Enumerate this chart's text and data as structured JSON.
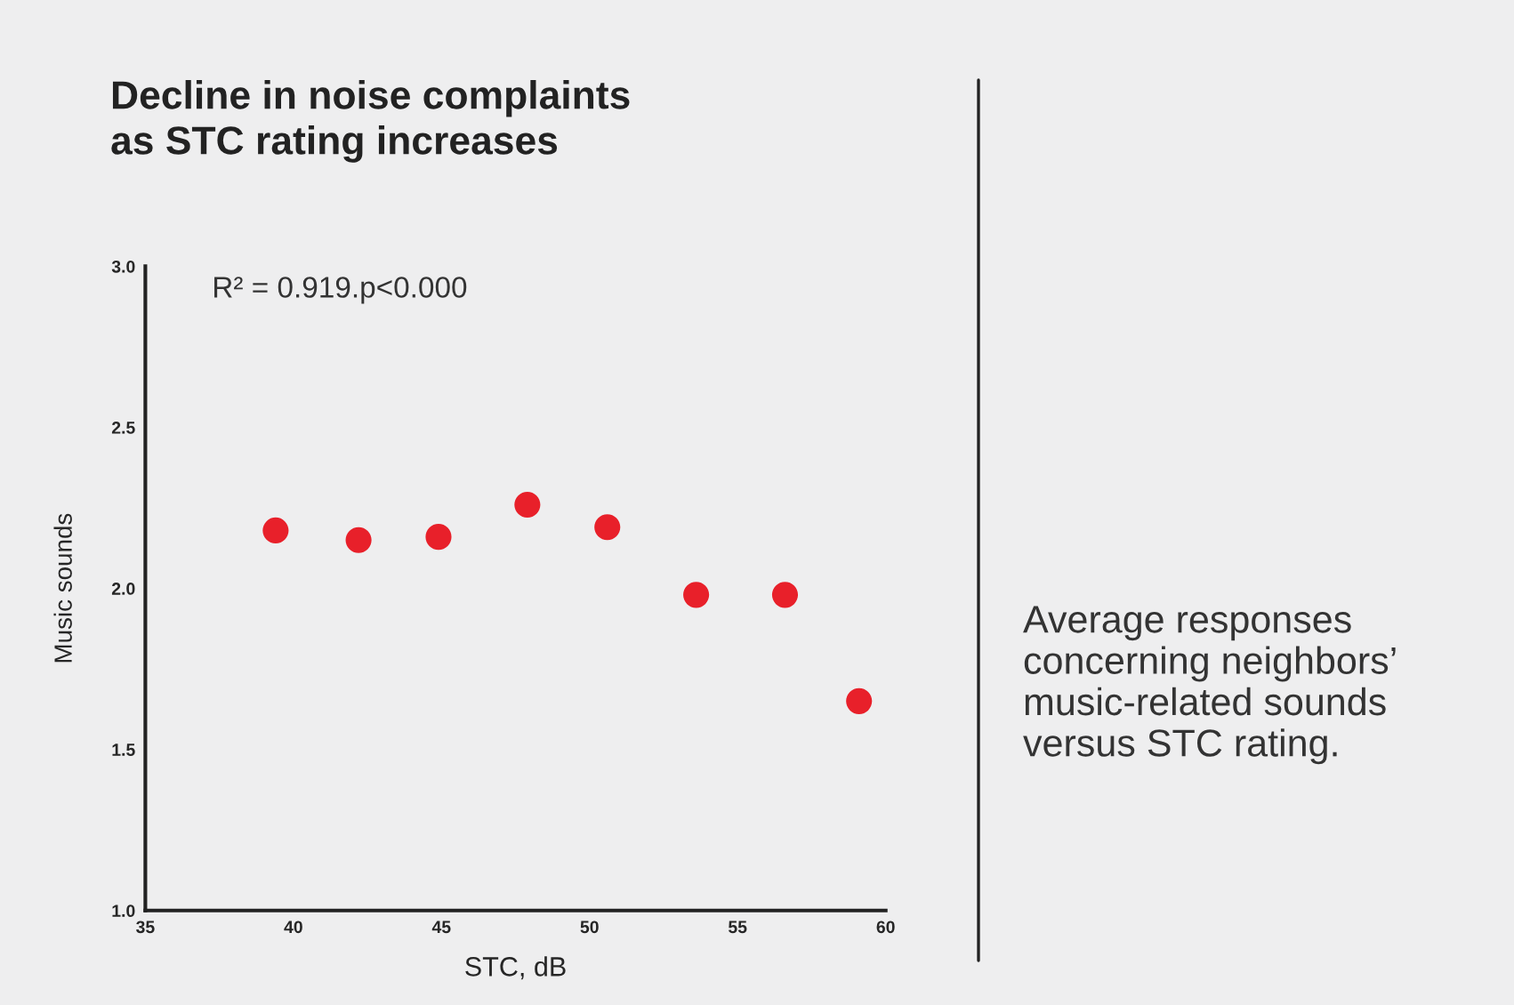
{
  "chart_data": {
    "type": "scatter",
    "title": "Decline in noise complaints\nas STC rating increases",
    "xlabel": "STC, dB",
    "ylabel": "Music sounds",
    "x": [
      39.4,
      42.2,
      44.9,
      47.9,
      50.6,
      53.6,
      56.6,
      59.1
    ],
    "series": [
      {
        "color": "#e8202a",
        "values": [
          2.18,
          2.15,
          2.16,
          2.26,
          2.19,
          1.98,
          1.98,
          1.65
        ]
      }
    ],
    "xlim": [
      35,
      60
    ],
    "xticks": [
      35,
      40,
      45,
      50,
      55,
      60
    ],
    "ylim": [
      1.0,
      3.0
    ],
    "yticks": [
      {
        "value": 1.0,
        "label": "1.0"
      },
      {
        "value": 1.5,
        "label": "1.5"
      },
      {
        "value": 2.0,
        "label": "2.0"
      },
      {
        "value": 2.5,
        "label": "2.5"
      },
      {
        "value": 3.0,
        "label": "3.0"
      }
    ],
    "marker": "circle",
    "grid": false,
    "legend": false,
    "annotations": [
      "R² = 0.919.p<0.000",
      "Average responses\nconcerning neighbors’\nmusic-related sounds\nversus STC rating."
    ]
  }
}
